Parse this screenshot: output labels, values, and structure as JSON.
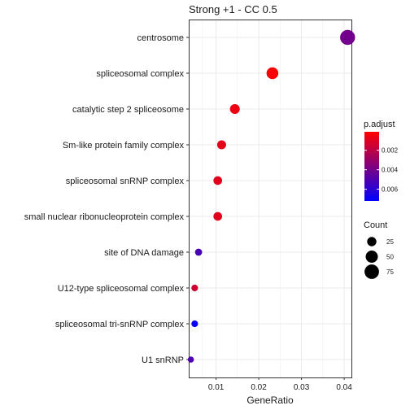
{
  "chart_data": {
    "type": "scatter",
    "title": "Strong +1 - CC 0.5",
    "xlabel": "GeneRatio",
    "ylabel": "",
    "xlim": [
      0.0036,
      0.0417
    ],
    "xticks": [
      0.01,
      0.02,
      0.03,
      0.04
    ],
    "xtick_labels": [
      "0.01",
      "0.02",
      "0.03",
      "0.04"
    ],
    "grid": true,
    "categories": [
      "centrosome",
      "spliceosomal complex",
      "catalytic step 2 spliceosome",
      "Sm-like protein family complex",
      "spliceosomal snRNP complex",
      "small nuclear ribonucleoprotein complex",
      "site of DNA damage",
      "U12-type spliceosomal complex",
      "spliceosomal tri-snRNP complex",
      "U1 snRNP"
    ],
    "points": [
      {
        "term": "centrosome",
        "gene_ratio": 0.0408,
        "count": 81,
        "p_adjust": 0.004
      },
      {
        "term": "spliceosomal complex",
        "gene_ratio": 0.0232,
        "count": 46,
        "p_adjust": 0.0002
      },
      {
        "term": "catalytic step 2 spliceosome",
        "gene_ratio": 0.0144,
        "count": 29,
        "p_adjust": 0.0006
      },
      {
        "term": "Sm-like protein family complex",
        "gene_ratio": 0.0113,
        "count": 23,
        "p_adjust": 0.0008
      },
      {
        "term": "spliceosomal snRNP complex",
        "gene_ratio": 0.0104,
        "count": 21,
        "p_adjust": 0.0009
      },
      {
        "term": "small nuclear ribonucleoprotein complex",
        "gene_ratio": 0.0104,
        "count": 21,
        "p_adjust": 0.0009
      },
      {
        "term": "site of DNA damage",
        "gene_ratio": 0.0059,
        "count": 12,
        "p_adjust": 0.0052
      },
      {
        "term": "U12-type spliceosomal complex",
        "gene_ratio": 0.005,
        "count": 10,
        "p_adjust": 0.0015
      },
      {
        "term": "spliceosomal tri-snRNP complex",
        "gene_ratio": 0.005,
        "count": 10,
        "p_adjust": 0.007
      },
      {
        "term": "U1 snRNP",
        "gene_ratio": 0.0041,
        "count": 8,
        "p_adjust": 0.005
      }
    ],
    "color_legend": {
      "title": "p.adjust",
      "ticks": [
        0.002,
        0.004,
        0.006
      ],
      "tick_labels": [
        "0.002",
        "0.004",
        "0.006"
      ],
      "range": [
        0.0001,
        0.0072
      ],
      "low_color": "#ff0000",
      "high_color": "#0000ff"
    },
    "size_legend": {
      "title": "Count",
      "values": [
        25,
        50,
        75
      ],
      "labels": [
        "25",
        "50",
        "75"
      ]
    },
    "colors": {
      "panel_border": "#333333",
      "grid": "#ebebeb",
      "text": "#1a1a1a"
    }
  }
}
